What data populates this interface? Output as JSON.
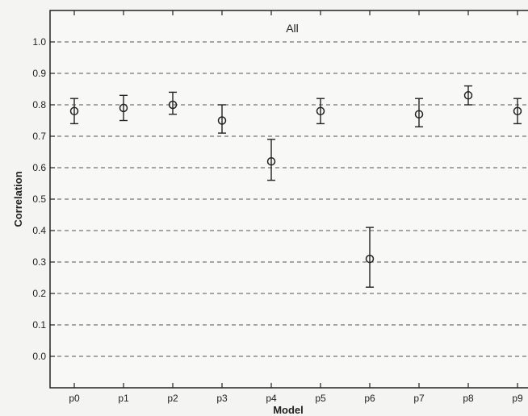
{
  "chart_data": {
    "type": "scatter",
    "title": "All",
    "xlabel": "Model",
    "ylabel": "Correlation",
    "categories": [
      "p0",
      "p1",
      "p2",
      "p3",
      "p4",
      "p5",
      "p6",
      "p7",
      "p8",
      "p9"
    ],
    "series": [
      {
        "values": [
          0.78,
          0.79,
          0.8,
          0.75,
          0.62,
          0.78,
          0.31,
          0.77,
          0.83,
          0.78
        ],
        "lower": [
          0.74,
          0.75,
          0.77,
          0.71,
          0.56,
          0.74,
          0.22,
          0.73,
          0.8,
          0.74
        ],
        "upper": [
          0.82,
          0.83,
          0.84,
          0.8,
          0.69,
          0.82,
          0.41,
          0.82,
          0.86,
          0.82
        ]
      }
    ],
    "ylim": [
      -0.1,
      1.1
    ],
    "yticks": [
      "0.0",
      "0.1",
      "0.2",
      "0.3",
      "0.4",
      "0.5",
      "0.6",
      "0.7",
      "0.8",
      "0.9",
      "1.0"
    ],
    "grid": true,
    "legend": "none"
  }
}
